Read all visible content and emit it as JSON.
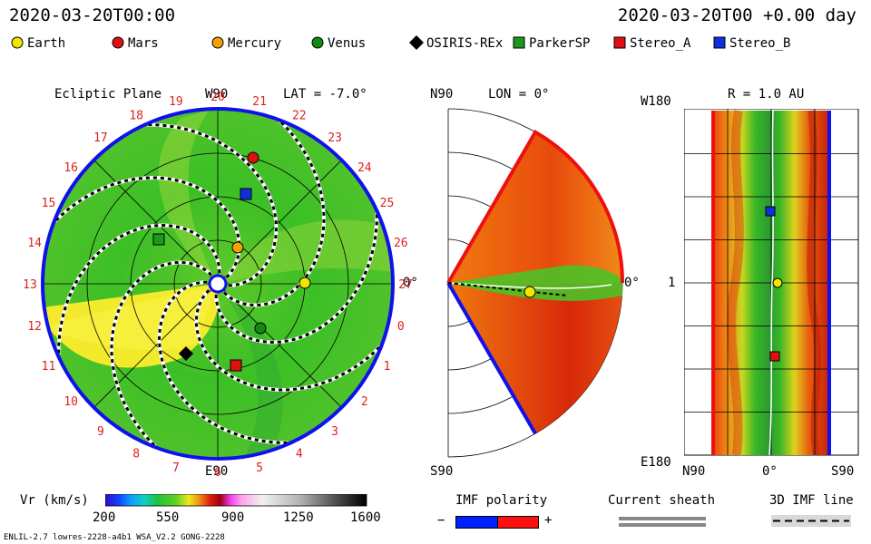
{
  "header": {
    "left_time": "2020-03-20T00:00",
    "right_time": "2020-03-20T00 +0.00 day"
  },
  "legend": [
    {
      "label": "Earth",
      "color": "#f2e600",
      "shape": "circle"
    },
    {
      "label": "Mars",
      "color": "#e01010",
      "shape": "circle"
    },
    {
      "label": "Mercury",
      "color": "#f5a000",
      "shape": "circle"
    },
    {
      "label": "Venus",
      "color": "#108a10",
      "shape": "circle"
    },
    {
      "label": "OSIRIS-REx",
      "color": "#000000",
      "shape": "diamond"
    },
    {
      "label": "ParkerSP",
      "color": "#1a9a1a",
      "shape": "square"
    },
    {
      "label": "Stereo_A",
      "color": "#e01010",
      "shape": "square"
    },
    {
      "label": "Stereo_B",
      "color": "#1030e0",
      "shape": "square"
    }
  ],
  "chart_data": [
    {
      "type": "heatmap",
      "panel": "ecliptic",
      "title": "Ecliptic Plane",
      "lat_label": "LAT = -7.0°",
      "top_label": "W90",
      "bottom_label": "E90",
      "right_label": "0°",
      "carrington_labels": [
        "20",
        "21",
        "22",
        "23",
        "24",
        "25",
        "26",
        "27",
        "0",
        "1",
        "2",
        "3",
        "4",
        "5",
        "6",
        "7",
        "8",
        "9",
        "10",
        "11",
        "12",
        "13",
        "14",
        "15",
        "16",
        "17",
        "18",
        "19"
      ]
    },
    {
      "type": "heatmap",
      "panel": "meridional",
      "title": "LON = 0°",
      "top_label": "N90",
      "bottom_label": "S90",
      "right_label": "0°"
    },
    {
      "type": "heatmap",
      "panel": "radial",
      "title": "R = 1.0 AU",
      "top_left_label": "W180",
      "left_mid_label": "1",
      "bottom_left_label": "E180",
      "x_tick_labels": [
        "N90",
        "0°",
        "S90"
      ]
    }
  ],
  "colorbar": {
    "title": "Vr (km/s)",
    "ticks": [
      "200",
      "550",
      "900",
      "1250",
      "1600"
    ],
    "range": [
      200,
      1600
    ]
  },
  "imf_polarity": {
    "title": "IMF polarity",
    "minus": "−",
    "plus": "+",
    "neg_color": "#0020ff",
    "pos_color": "#ff1010"
  },
  "current_sheath": {
    "title": "Current sheath"
  },
  "imf_line": {
    "title": "3D IMF line"
  },
  "footer": {
    "left": "ENLIL-2.7 lowres-2228-a4b1 WSA_V2.2 GONG-2228"
  }
}
